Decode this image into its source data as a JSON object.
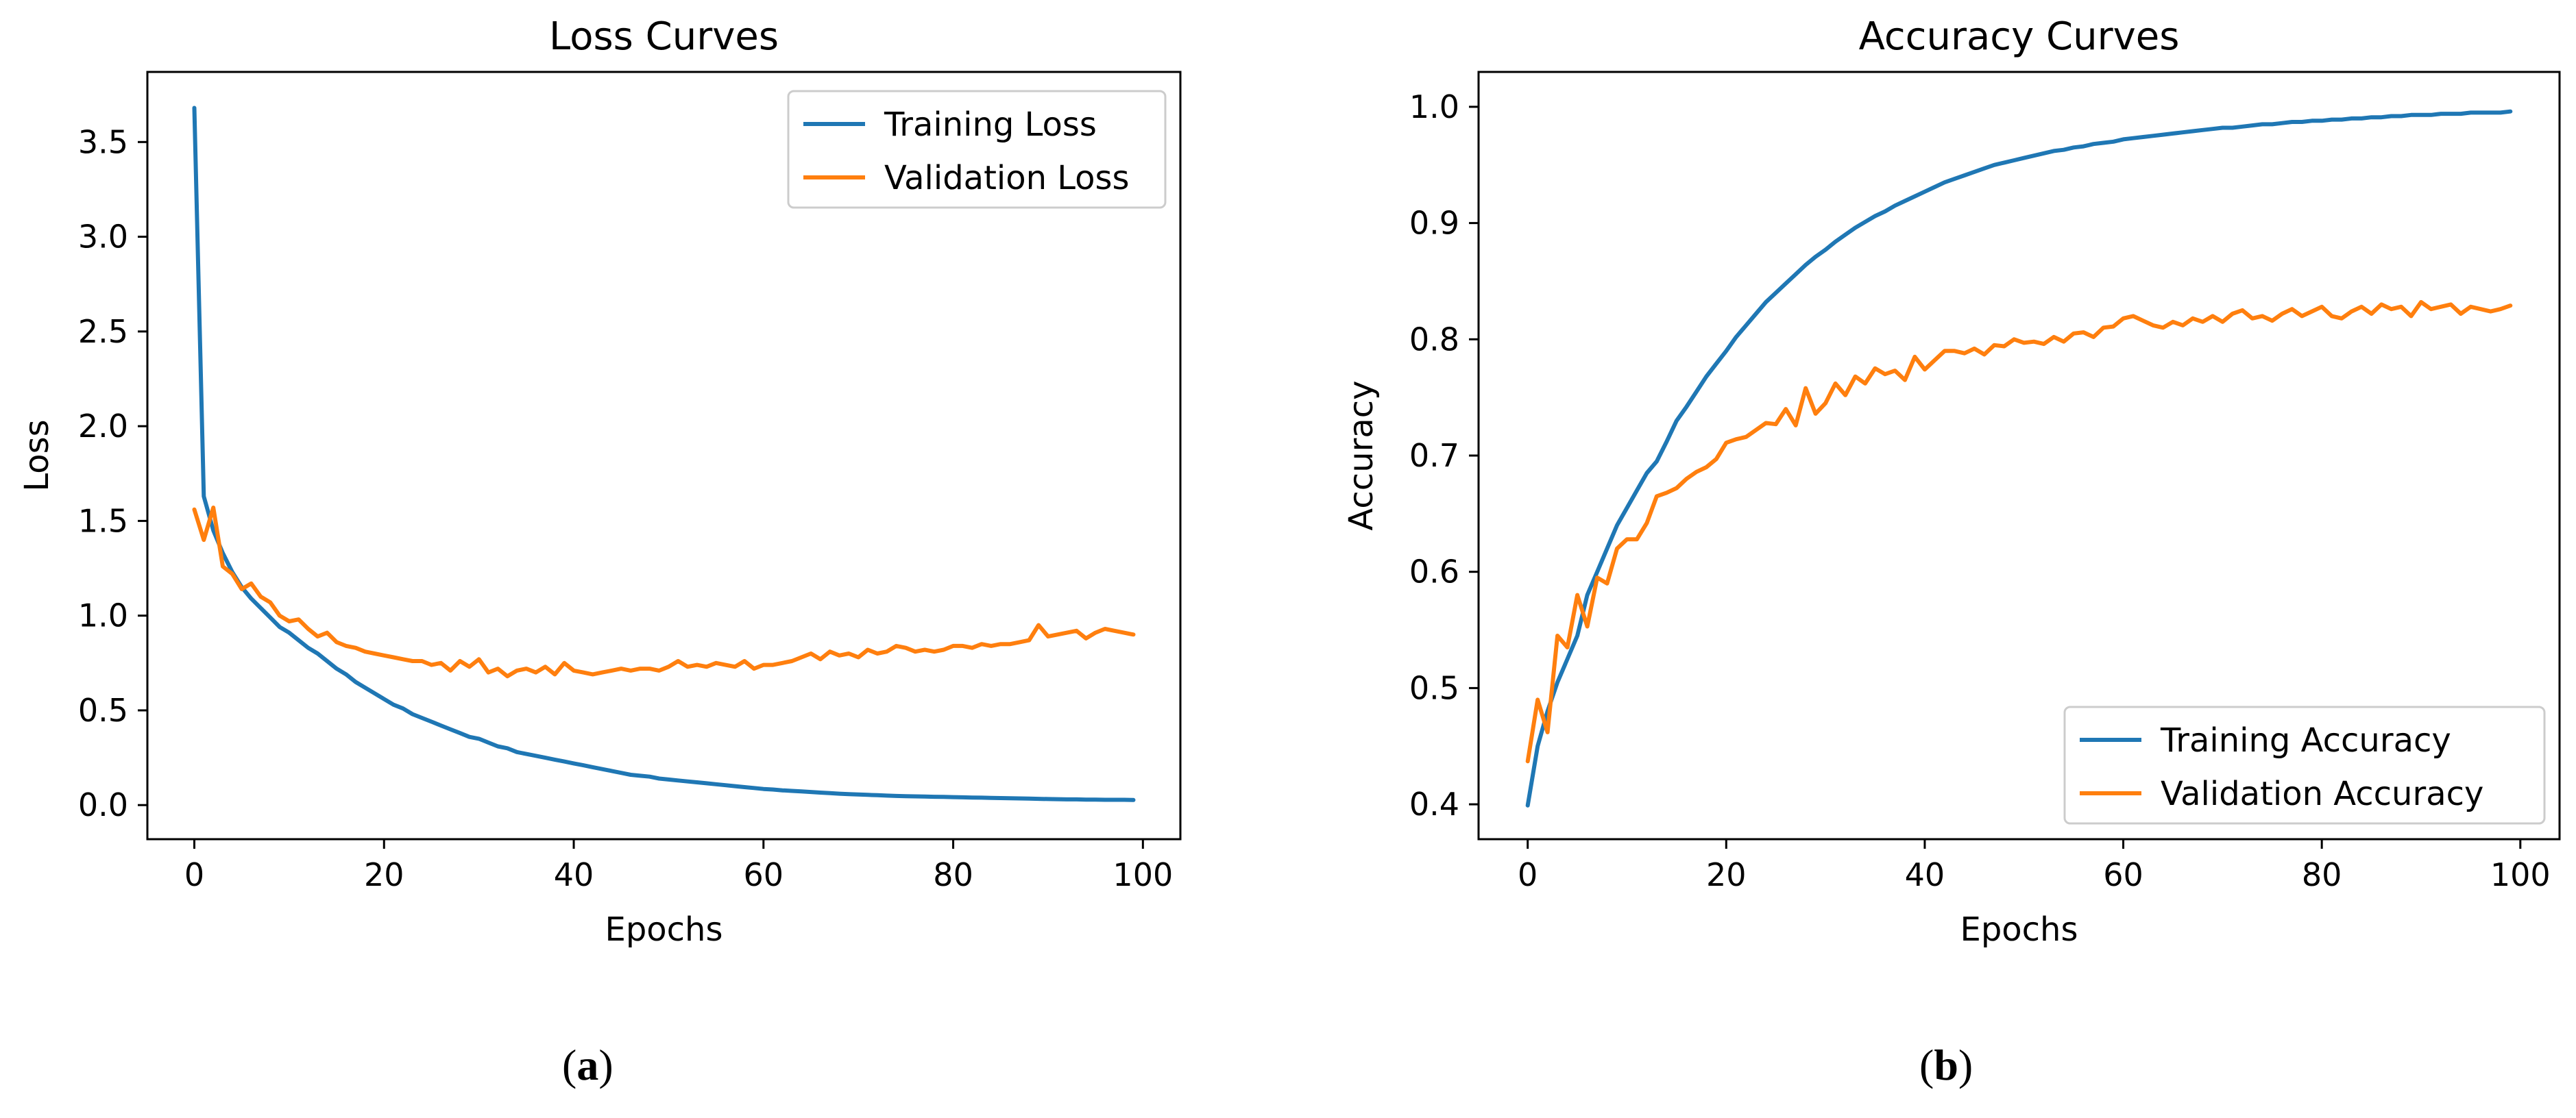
{
  "colors": {
    "training": "#1f77b4",
    "validation": "#ff7f0e",
    "axis": "#000000",
    "legend_border": "#cccccc"
  },
  "panel_labels": [
    "a",
    "b"
  ],
  "chart_data": [
    {
      "type": "line",
      "title": "Loss Curves",
      "xlabel": "Epochs",
      "ylabel": "Loss",
      "xlim": [
        -4.95,
        103.95
      ],
      "ylim": [
        -0.18,
        3.87
      ],
      "xticks": [
        0,
        20,
        40,
        60,
        80,
        100
      ],
      "yticks": [
        0.0,
        0.5,
        1.0,
        1.5,
        2.0,
        2.5,
        3.0,
        3.5
      ],
      "ytick_labels": [
        "0.0",
        "0.5",
        "1.0",
        "1.5",
        "2.0",
        "2.5",
        "3.0",
        "3.5"
      ],
      "xtick_labels": [
        "0",
        "20",
        "40",
        "60",
        "80",
        "100"
      ],
      "grid": false,
      "legend_position": "top-right",
      "series": [
        {
          "name": "Training Loss",
          "color": "#1f77b4",
          "values": [
            3.68,
            1.63,
            1.45,
            1.33,
            1.23,
            1.15,
            1.09,
            1.04,
            0.99,
            0.94,
            0.91,
            0.87,
            0.83,
            0.8,
            0.76,
            0.72,
            0.69,
            0.65,
            0.62,
            0.59,
            0.56,
            0.53,
            0.51,
            0.48,
            0.46,
            0.44,
            0.42,
            0.4,
            0.38,
            0.36,
            0.35,
            0.33,
            0.31,
            0.3,
            0.28,
            0.27,
            0.26,
            0.25,
            0.24,
            0.23,
            0.22,
            0.21,
            0.2,
            0.19,
            0.18,
            0.17,
            0.16,
            0.155,
            0.15,
            0.14,
            0.135,
            0.13,
            0.125,
            0.12,
            0.115,
            0.11,
            0.105,
            0.1,
            0.095,
            0.09,
            0.085,
            0.082,
            0.078,
            0.075,
            0.072,
            0.069,
            0.066,
            0.063,
            0.06,
            0.058,
            0.056,
            0.054,
            0.052,
            0.05,
            0.048,
            0.047,
            0.046,
            0.045,
            0.044,
            0.043,
            0.042,
            0.041,
            0.04,
            0.039,
            0.038,
            0.037,
            0.036,
            0.035,
            0.034,
            0.033,
            0.032,
            0.031,
            0.03,
            0.03,
            0.029,
            0.029,
            0.028,
            0.028,
            0.028,
            0.027
          ]
        },
        {
          "name": "Validation Loss",
          "color": "#ff7f0e",
          "values": [
            1.56,
            1.4,
            1.57,
            1.26,
            1.22,
            1.14,
            1.17,
            1.1,
            1.07,
            1.0,
            0.97,
            0.98,
            0.93,
            0.89,
            0.91,
            0.86,
            0.84,
            0.83,
            0.81,
            0.8,
            0.79,
            0.78,
            0.77,
            0.76,
            0.76,
            0.74,
            0.75,
            0.71,
            0.76,
            0.73,
            0.77,
            0.7,
            0.72,
            0.68,
            0.71,
            0.72,
            0.7,
            0.73,
            0.69,
            0.75,
            0.71,
            0.7,
            0.69,
            0.7,
            0.71,
            0.72,
            0.71,
            0.72,
            0.72,
            0.71,
            0.73,
            0.76,
            0.73,
            0.74,
            0.73,
            0.75,
            0.74,
            0.73,
            0.76,
            0.72,
            0.74,
            0.74,
            0.75,
            0.76,
            0.78,
            0.8,
            0.77,
            0.81,
            0.79,
            0.8,
            0.78,
            0.82,
            0.8,
            0.81,
            0.84,
            0.83,
            0.81,
            0.82,
            0.81,
            0.82,
            0.84,
            0.84,
            0.83,
            0.85,
            0.84,
            0.85,
            0.85,
            0.86,
            0.87,
            0.95,
            0.89,
            0.9,
            0.91,
            0.92,
            0.88,
            0.91,
            0.93,
            0.92,
            0.91,
            0.9
          ]
        }
      ]
    },
    {
      "type": "line",
      "title": "Accuracy Curves",
      "xlabel": "Epochs",
      "ylabel": "Accuracy",
      "xlim": [
        -4.95,
        103.95
      ],
      "ylim": [
        0.37,
        1.03
      ],
      "xticks": [
        0,
        20,
        40,
        60,
        80,
        100
      ],
      "yticks": [
        0.4,
        0.5,
        0.6,
        0.7,
        0.8,
        0.9,
        1.0
      ],
      "ytick_labels": [
        "0.4",
        "0.5",
        "0.6",
        "0.7",
        "0.8",
        "0.9",
        "1.0"
      ],
      "xtick_labels": [
        "0",
        "20",
        "40",
        "60",
        "80",
        "100"
      ],
      "grid": false,
      "legend_position": "lower-right",
      "series": [
        {
          "name": "Training Accuracy",
          "color": "#1f77b4",
          "values": [
            0.399,
            0.45,
            0.48,
            0.505,
            0.525,
            0.545,
            0.58,
            0.6,
            0.62,
            0.64,
            0.655,
            0.67,
            0.685,
            0.695,
            0.712,
            0.73,
            0.742,
            0.755,
            0.768,
            0.779,
            0.79,
            0.802,
            0.812,
            0.822,
            0.832,
            0.84,
            0.848,
            0.856,
            0.864,
            0.871,
            0.877,
            0.884,
            0.89,
            0.896,
            0.901,
            0.906,
            0.91,
            0.915,
            0.919,
            0.923,
            0.927,
            0.931,
            0.935,
            0.938,
            0.941,
            0.944,
            0.947,
            0.95,
            0.952,
            0.954,
            0.956,
            0.958,
            0.96,
            0.962,
            0.963,
            0.965,
            0.966,
            0.968,
            0.969,
            0.97,
            0.972,
            0.973,
            0.974,
            0.975,
            0.976,
            0.977,
            0.978,
            0.979,
            0.98,
            0.981,
            0.982,
            0.982,
            0.983,
            0.984,
            0.985,
            0.985,
            0.986,
            0.987,
            0.987,
            0.988,
            0.988,
            0.989,
            0.989,
            0.99,
            0.99,
            0.991,
            0.991,
            0.992,
            0.992,
            0.993,
            0.993,
            0.993,
            0.994,
            0.994,
            0.994,
            0.995,
            0.995,
            0.995,
            0.995,
            0.996
          ]
        },
        {
          "name": "Validation Accuracy",
          "color": "#ff7f0e",
          "values": [
            0.437,
            0.49,
            0.462,
            0.545,
            0.535,
            0.58,
            0.553,
            0.595,
            0.59,
            0.62,
            0.628,
            0.628,
            0.642,
            0.665,
            0.668,
            0.672,
            0.68,
            0.686,
            0.69,
            0.697,
            0.711,
            0.714,
            0.716,
            0.722,
            0.728,
            0.727,
            0.74,
            0.726,
            0.758,
            0.736,
            0.745,
            0.762,
            0.752,
            0.768,
            0.762,
            0.775,
            0.77,
            0.773,
            0.765,
            0.785,
            0.774,
            0.782,
            0.79,
            0.79,
            0.788,
            0.792,
            0.787,
            0.795,
            0.794,
            0.8,
            0.797,
            0.798,
            0.796,
            0.802,
            0.798,
            0.805,
            0.806,
            0.802,
            0.81,
            0.811,
            0.818,
            0.82,
            0.816,
            0.812,
            0.81,
            0.815,
            0.812,
            0.818,
            0.815,
            0.82,
            0.815,
            0.822,
            0.825,
            0.818,
            0.82,
            0.816,
            0.822,
            0.826,
            0.82,
            0.824,
            0.828,
            0.82,
            0.818,
            0.824,
            0.828,
            0.822,
            0.83,
            0.826,
            0.828,
            0.82,
            0.832,
            0.826,
            0.828,
            0.83,
            0.822,
            0.828,
            0.826,
            0.824,
            0.826,
            0.829
          ]
        }
      ]
    }
  ]
}
